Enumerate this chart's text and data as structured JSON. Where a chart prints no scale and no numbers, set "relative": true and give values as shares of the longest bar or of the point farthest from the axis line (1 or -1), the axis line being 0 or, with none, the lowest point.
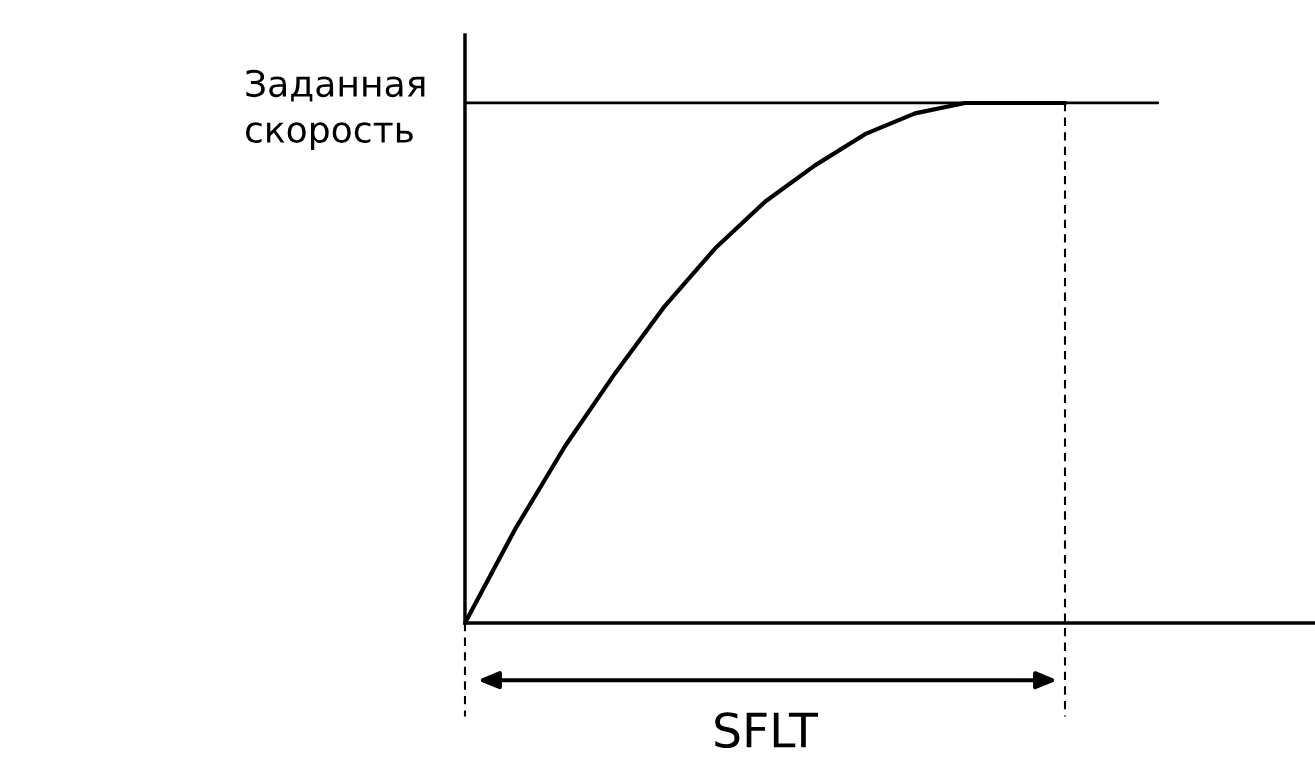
{
  "chart_data": {
    "type": "line",
    "relative": true,
    "categories": [
      null,
      null,
      null,
      null,
      null,
      null,
      null,
      null,
      null,
      null,
      null,
      null,
      null,
      null,
      null,
      null,
      null,
      null
    ],
    "series": [
      {
        "color": "#000000",
        "values": [
          0,
          0.18,
          0.34,
          0.48,
          0.61,
          0.72,
          0.81,
          0.88,
          0.94,
          0.98,
          1.0,
          1.0,
          1.0,
          null,
          null,
          null,
          null,
          null
        ]
      }
    ],
    "ref_lines": [
      {
        "axis": "y",
        "value": 1,
        "label": "Заданная\nскорость",
        "color": "#000000",
        "line_style": "solid"
      }
    ],
    "annotations": [
      "SFLT"
    ],
    "grid": false,
    "legend": false
  }
}
